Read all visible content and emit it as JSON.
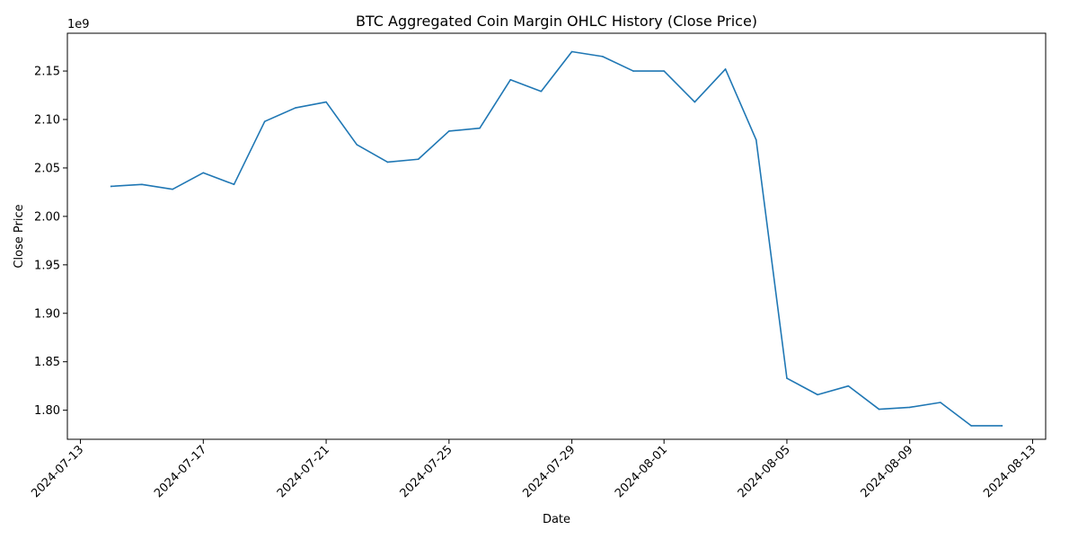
{
  "chart_data": {
    "type": "line",
    "title": "BTC Aggregated Coin Margin OHLC History (Close Price)",
    "xlabel": "Date",
    "ylabel": "Close Price",
    "y_offset_label": "1e9",
    "y_scale": 1000000000,
    "ylim": [
      1.77,
      2.189
    ],
    "xlim": [
      "2024-07-12T13:48",
      "2024-08-13T10:12"
    ],
    "x_ticks": [
      "2024-07-13",
      "2024-07-17",
      "2024-07-21",
      "2024-07-25",
      "2024-07-29",
      "2024-08-01",
      "2024-08-05",
      "2024-08-09",
      "2024-08-13"
    ],
    "y_ticks": [
      "1.80",
      "1.85",
      "1.90",
      "1.95",
      "2.00",
      "2.05",
      "2.10",
      "2.15"
    ],
    "grid": false,
    "legend": "none",
    "color": "#1f77b4",
    "series": [
      {
        "x": [
          "2024-07-14",
          "2024-07-15",
          "2024-07-16",
          "2024-07-17",
          "2024-07-18",
          "2024-07-19",
          "2024-07-20",
          "2024-07-21",
          "2024-07-22",
          "2024-07-23",
          "2024-07-24",
          "2024-07-25",
          "2024-07-26",
          "2024-07-27",
          "2024-07-28",
          "2024-07-29",
          "2024-07-30",
          "2024-07-31",
          "2024-08-01",
          "2024-08-02",
          "2024-08-03",
          "2024-08-04",
          "2024-08-05",
          "2024-08-06",
          "2024-08-07",
          "2024-08-08",
          "2024-08-09",
          "2024-08-10",
          "2024-08-11",
          "2024-08-12"
        ],
        "values": [
          2.031,
          2.033,
          2.028,
          2.045,
          2.033,
          2.098,
          2.112,
          2.118,
          2.074,
          2.056,
          2.059,
          2.088,
          2.091,
          2.141,
          2.129,
          2.17,
          2.165,
          2.15,
          2.15,
          2.118,
          2.152,
          2.079,
          1.833,
          1.816,
          1.825,
          1.801,
          1.803,
          1.808,
          1.784,
          1.784
        ]
      }
    ]
  }
}
